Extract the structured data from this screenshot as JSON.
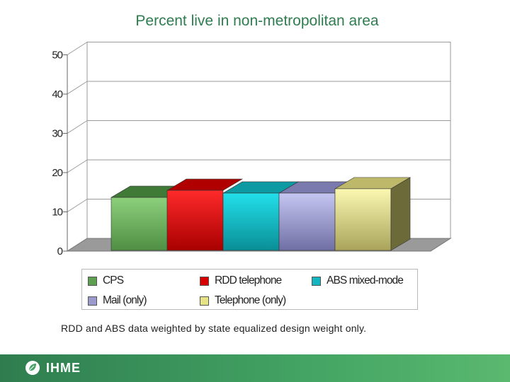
{
  "chart_data": {
    "type": "bar",
    "title": "Percent live in non-metropolitan area",
    "categories": [
      "CPS",
      "RDD telephone",
      "ABS mixed-mode",
      "Mail (only)",
      "Telephone (only)"
    ],
    "values": [
      13.5,
      15.3,
      14.6,
      14.6,
      15.7
    ],
    "ylim": [
      0,
      50
    ],
    "yticks": [
      0,
      10,
      20,
      30,
      40,
      50
    ],
    "xlabel": "",
    "ylabel": "",
    "legend": "bottom",
    "grid": true,
    "note": "RDD and ABS data weighted by state equalized design weight only."
  },
  "colors": {
    "CPS": "#7fbf6f",
    "RDD telephone": "#f01010",
    "ABS mixed-mode": "#17ccd6",
    "Mail (only)": "#aaaadd",
    "Telephone (only)": "#f2ee8f",
    "accent": "#2f7d4f"
  },
  "footer": {
    "logo_text": "IHME",
    "logo_icon": "leaf-icon"
  }
}
